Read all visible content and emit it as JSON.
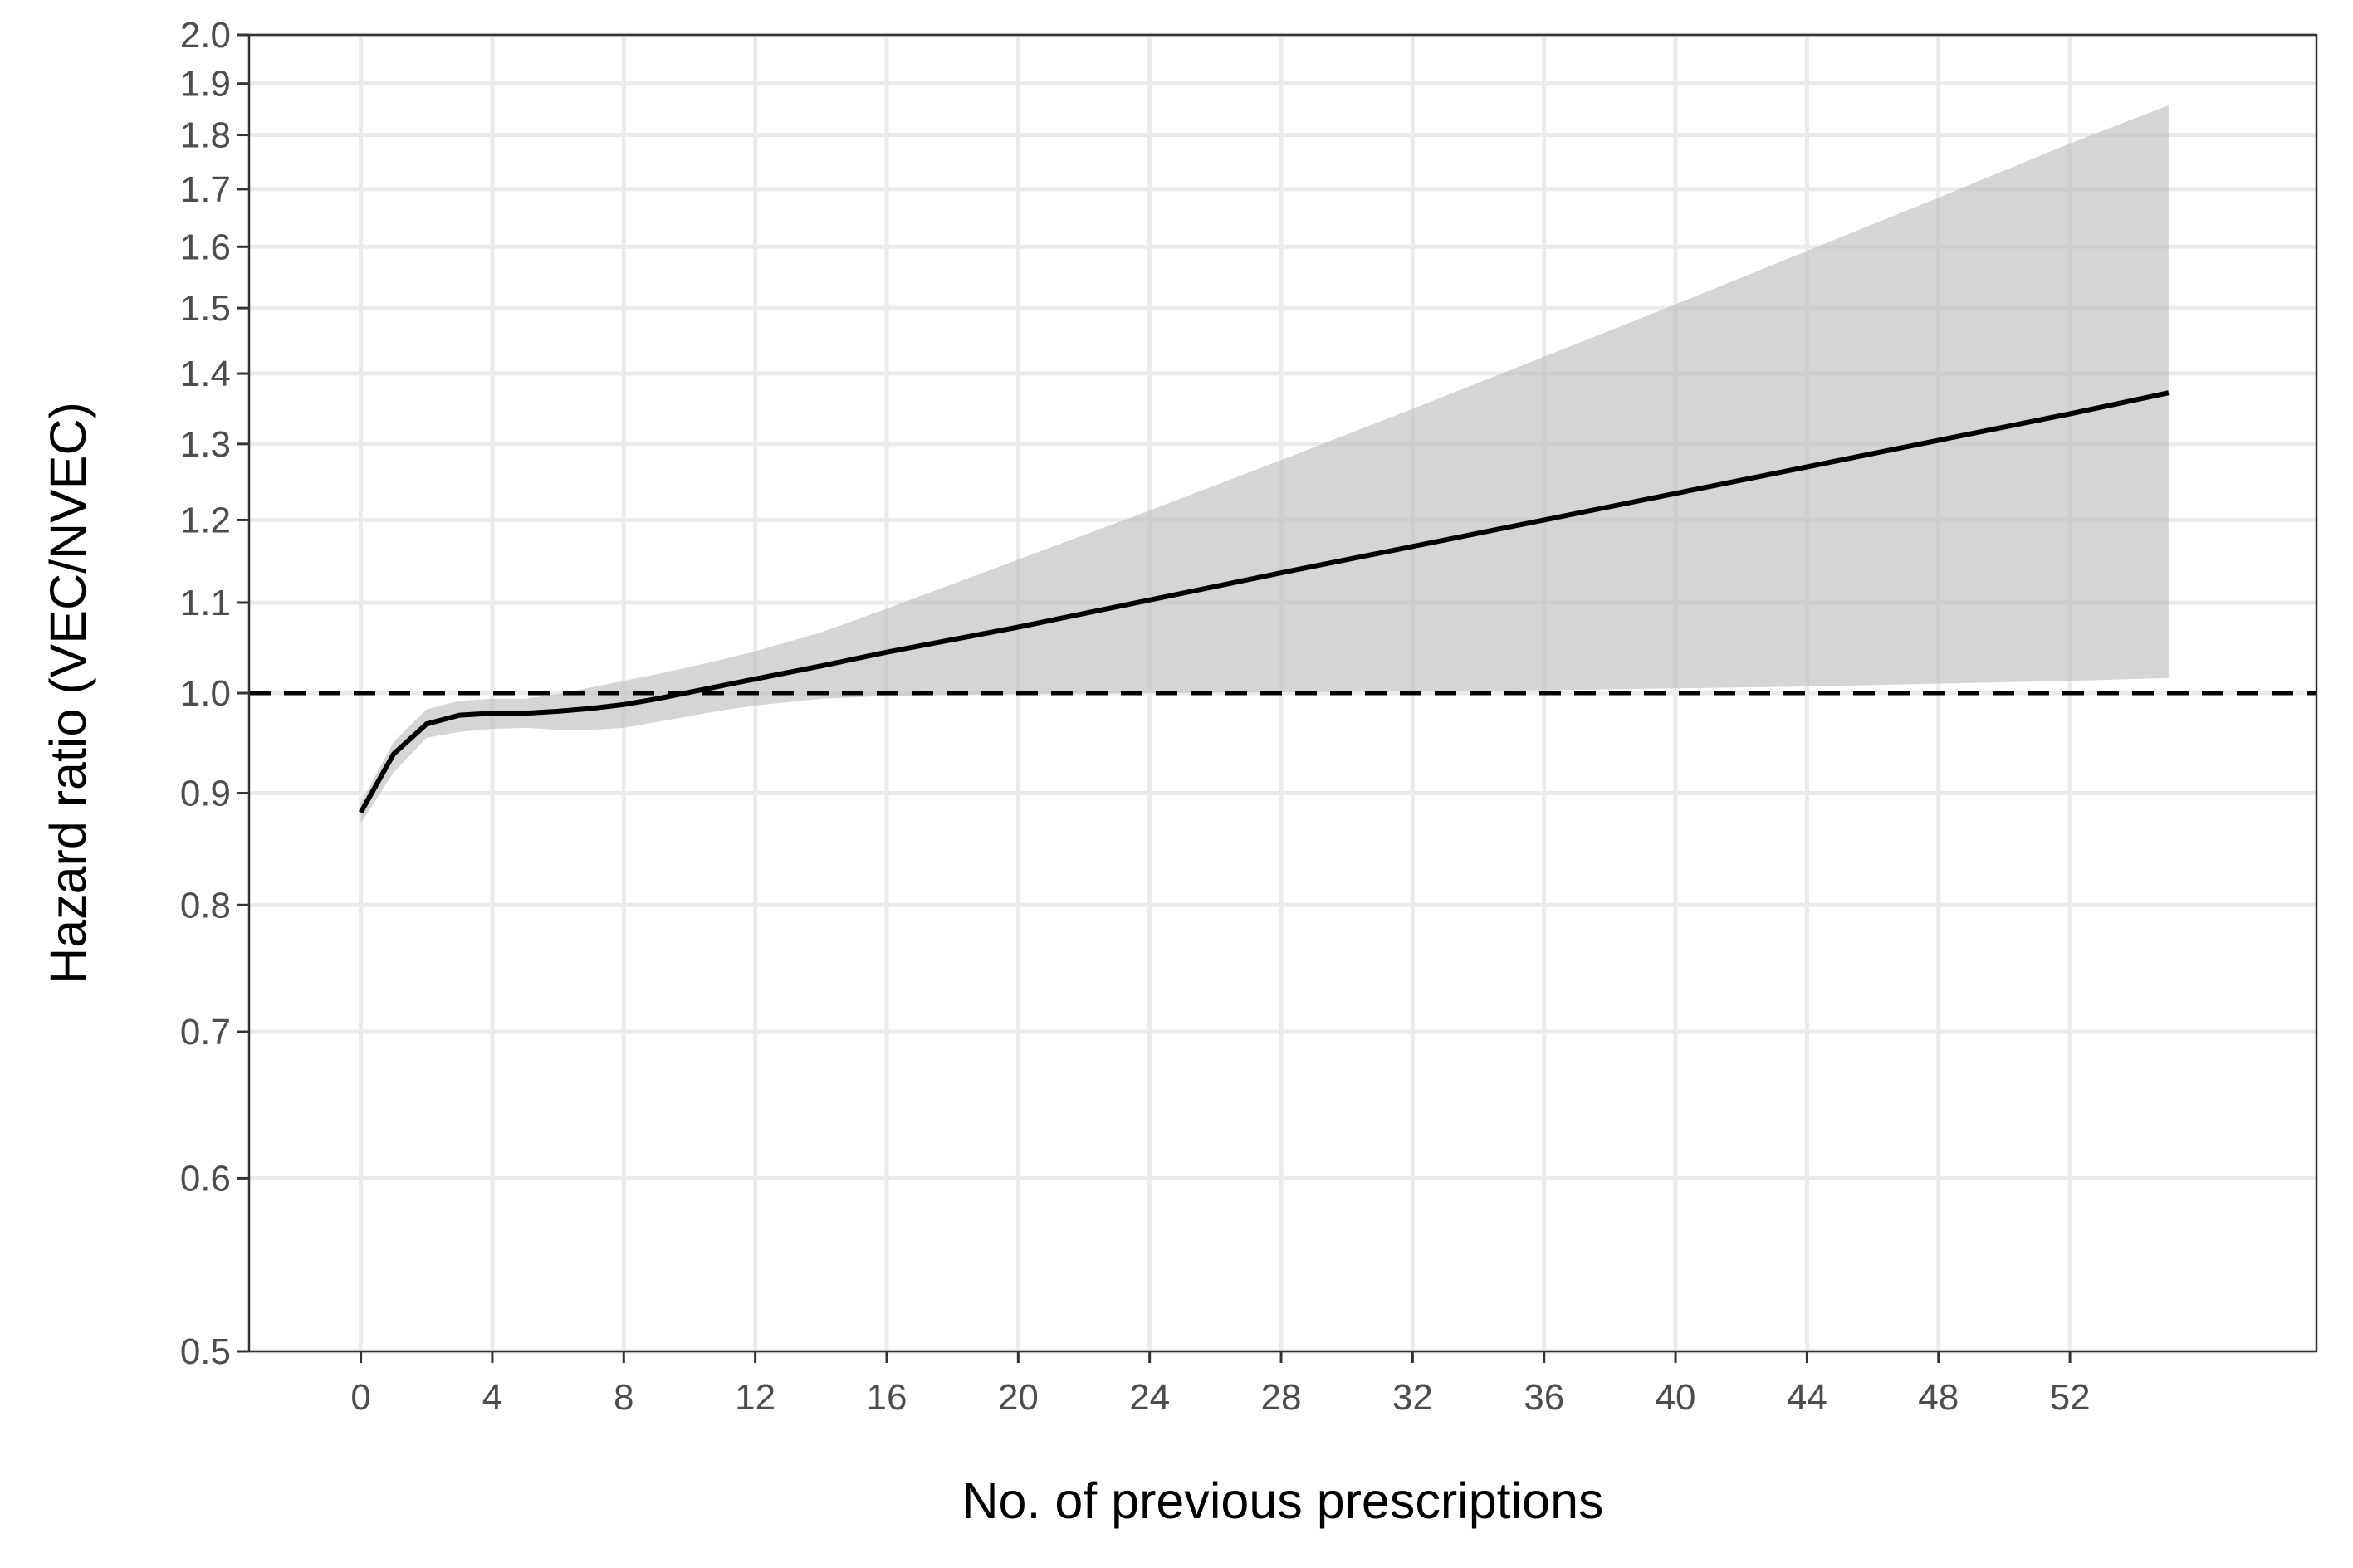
{
  "chart_data": {
    "type": "line",
    "title": "",
    "xlabel": "No. of previous prescriptions",
    "ylabel": "Hazard ratio (VEC/NVEC)",
    "x_scale": "linear",
    "y_scale": "log",
    "xlim": [
      -3.4,
      59.5
    ],
    "ylim": [
      0.5,
      2.0
    ],
    "x_ticks": [
      0,
      4,
      8,
      12,
      16,
      20,
      24,
      28,
      32,
      36,
      40,
      44,
      48,
      52
    ],
    "y_ticks": [
      0.5,
      0.6,
      0.7,
      0.8,
      0.9,
      1.0,
      1.1,
      1.2,
      1.3,
      1.4,
      1.5,
      1.6,
      1.7,
      1.8,
      1.9,
      2.0
    ],
    "y_tick_labels": [
      "0.5",
      "0.6",
      "0.7",
      "0.8",
      "0.9",
      "1.0",
      "1.1",
      "1.2",
      "1.3",
      "1.4",
      "1.5",
      "1.6",
      "1.7",
      "1.8",
      "1.9",
      "2.0"
    ],
    "grid": true,
    "reference_line": {
      "y": 1.0,
      "style": "dashed",
      "color": "#000000"
    },
    "series": [
      {
        "x": [
          0,
          1,
          2,
          3,
          4,
          5,
          6,
          7,
          8,
          9,
          10,
          11,
          12,
          14,
          16,
          20,
          24,
          28,
          32,
          36,
          40,
          44,
          48,
          52,
          55
        ],
        "y": [
          0.882,
          0.938,
          0.968,
          0.977,
          0.979,
          0.979,
          0.981,
          0.984,
          0.988,
          0.994,
          1.001,
          1.008,
          1.015,
          1.029,
          1.044,
          1.072,
          1.103,
          1.135,
          1.167,
          1.2,
          1.234,
          1.269,
          1.305,
          1.342,
          1.372
        ],
        "ci_lower": [
          0.872,
          0.92,
          0.954,
          0.96,
          0.963,
          0.964,
          0.962,
          0.962,
          0.964,
          0.97,
          0.976,
          0.982,
          0.987,
          0.994,
          0.997,
          0.999,
          1.0,
          1.001,
          1.002,
          1.003,
          1.005,
          1.007,
          1.01,
          1.013,
          1.016
        ],
        "ci_upper": [
          0.891,
          0.95,
          0.983,
          0.992,
          0.994,
          0.994,
          0.999,
          1.006,
          1.013,
          1.02,
          1.028,
          1.036,
          1.045,
          1.066,
          1.093,
          1.151,
          1.212,
          1.278,
          1.349,
          1.425,
          1.506,
          1.593,
          1.685,
          1.784,
          1.857
        ],
        "color": "#000000",
        "band_color": "#bebebe"
      }
    ]
  }
}
